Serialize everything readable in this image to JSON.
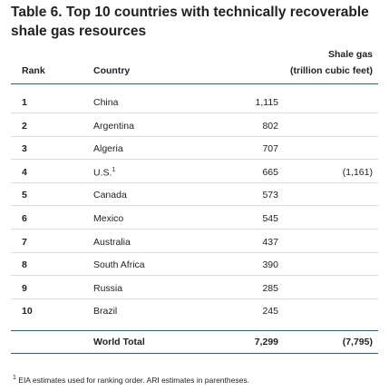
{
  "title": "Table 6. Top 10 countries with technically recoverable shale gas resources",
  "headers": {
    "rank": "Rank",
    "country": "Country",
    "shale_gas_line1": "Shale gas",
    "shale_gas_line2": "(trillion cubic feet)"
  },
  "rows": [
    {
      "rank": "1",
      "country": "China",
      "sup": "",
      "value": "1,115",
      "ari": ""
    },
    {
      "rank": "2",
      "country": "Argentina",
      "sup": "",
      "value": "802",
      "ari": ""
    },
    {
      "rank": "3",
      "country": "Algeria",
      "sup": "",
      "value": "707",
      "ari": ""
    },
    {
      "rank": "4",
      "country": "U.S.",
      "sup": "1",
      "value": "665",
      "ari": "(1,161)"
    },
    {
      "rank": "5",
      "country": "Canada",
      "sup": "",
      "value": "573",
      "ari": ""
    },
    {
      "rank": "6",
      "country": "Mexico",
      "sup": "",
      "value": "545",
      "ari": ""
    },
    {
      "rank": "7",
      "country": "Australia",
      "sup": "",
      "value": "437",
      "ari": ""
    },
    {
      "rank": "8",
      "country": "South Africa",
      "sup": "",
      "value": "390",
      "ari": ""
    },
    {
      "rank": "9",
      "country": "Russia",
      "sup": "",
      "value": "285",
      "ari": ""
    },
    {
      "rank": "10",
      "country": "Brazil",
      "sup": "",
      "value": "245",
      "ari": ""
    }
  ],
  "total": {
    "label": "World Total",
    "value": "7,299",
    "ari": "(7,795)"
  },
  "footnote": {
    "mark": "1",
    "text": "EIA estimates used for ranking order. ARI estimates in parentheses."
  }
}
